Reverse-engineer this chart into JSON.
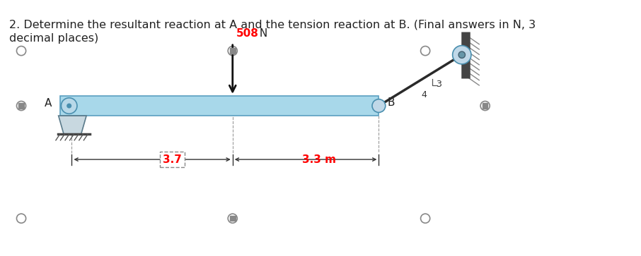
{
  "title_line1": "2. Determine the resultant reaction at A and the tension reaction at B. (Final answers in N, 3",
  "title_line2": "decimal places)",
  "title_fontsize": 11.5,
  "bg_color": "#ffffff",
  "beam_color": "#a8d8ea",
  "beam_edge_color": "#5a9fc0",
  "force_label_508": "508",
  "force_label_N": " N",
  "force_color_508": "#ff0000",
  "force_color_N": "#222222",
  "force_fontsize": 11,
  "label_A": "A",
  "label_B": "B",
  "label_fontsize": 11,
  "dim_3_7": "3.7",
  "dim_3_3": "3.3 m",
  "dim_color": "#ff0000",
  "dim_fontsize": 11,
  "rope_label_3": "3",
  "rope_label_4": "4",
  "rope_color": "#2a2a2a",
  "marker_color": "#888888",
  "square_color": "#888888"
}
